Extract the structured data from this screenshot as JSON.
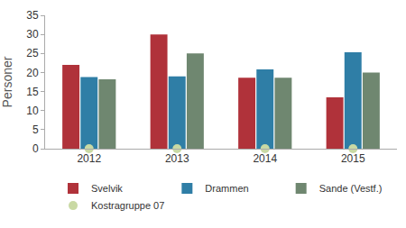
{
  "chart_data": {
    "type": "bar",
    "y_label": "Personer",
    "categories": [
      "2012",
      "2013",
      "2014",
      "2015"
    ],
    "series": [
      {
        "name": "Svelvik",
        "color": "#b0323a",
        "values": [
          22,
          30,
          18.6,
          13.5
        ]
      },
      {
        "name": "Drammen",
        "color": "#2f7ea6",
        "values": [
          18.8,
          19,
          20.8,
          25.3
        ]
      },
      {
        "name": "Sande (Vestf.)",
        "color": "#6f8770",
        "values": [
          18.2,
          25,
          18.6,
          20
        ]
      },
      {
        "name": "Kostragruppe 07",
        "color": "#c9d9a4",
        "type": "scatter",
        "marker": "circle",
        "values": [
          0,
          0,
          0,
          0
        ]
      }
    ],
    "ylim": [
      0,
      35
    ],
    "yticks": [
      0,
      5,
      10,
      15,
      20,
      25,
      30,
      35
    ],
    "grid": false,
    "legend": "bottom"
  }
}
